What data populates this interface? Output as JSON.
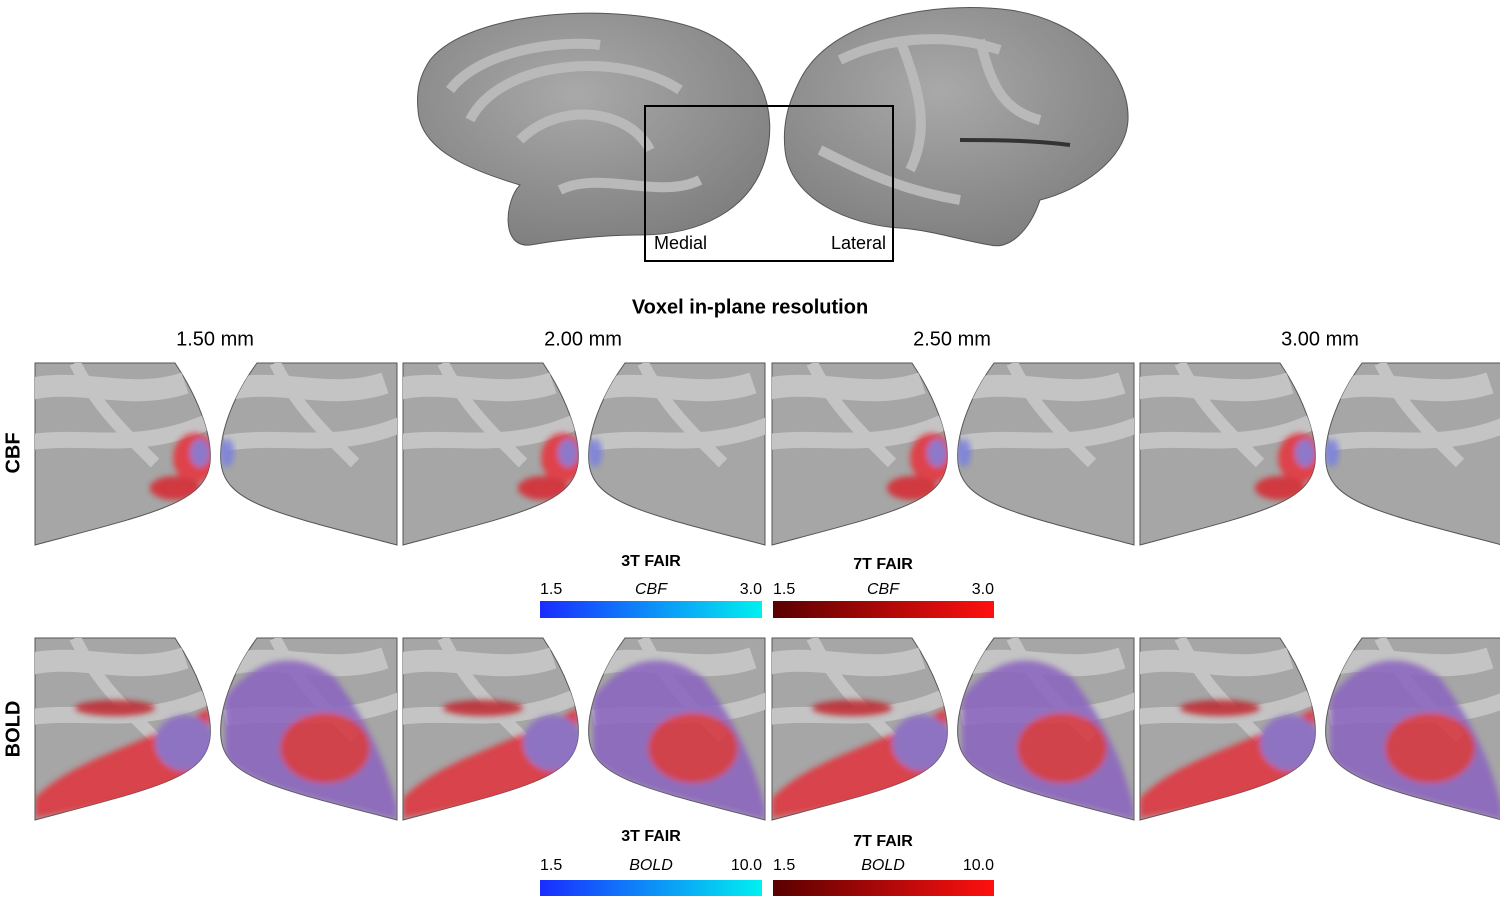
{
  "overview": {
    "medial": "Medial",
    "lateral": "Lateral"
  },
  "title": "Voxel in-plane resolution",
  "columns": [
    "1.50 mm",
    "2.00 mm",
    "2.50 mm",
    "3.00 mm"
  ],
  "rows": [
    "CBF",
    "BOLD"
  ],
  "colorbars": [
    [
      {
        "title": "3T FAIR",
        "min": "1.5",
        "label": "CBF",
        "max": "3.0"
      },
      {
        "title": "7T FAIR",
        "min": "1.5",
        "label": "CBF",
        "max": "3.0"
      }
    ],
    [
      {
        "title": "3T FAIR",
        "min": "1.5",
        "label": "BOLD",
        "max": "10.0"
      },
      {
        "title": "7T FAIR",
        "min": "1.5",
        "label": "BOLD",
        "max": "10.0"
      }
    ]
  ]
}
